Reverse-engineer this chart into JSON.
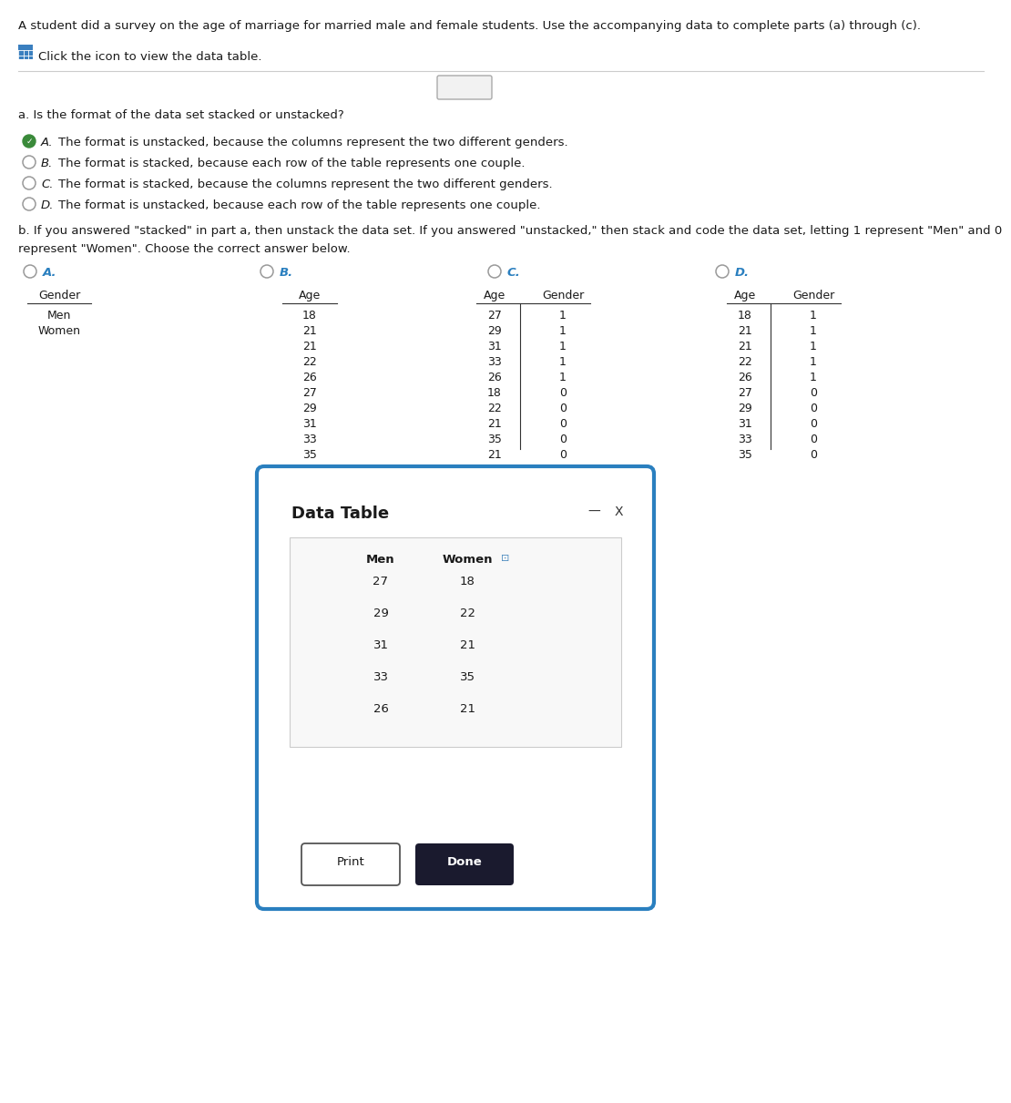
{
  "title": "A student did a survey on the age of marriage for married male and female students. Use the accompanying data to complete parts (a) through (c).",
  "click_text": "Click the icon to view the data table.",
  "part_a_label": "a. Is the format of the data set stacked or unstacked?",
  "part_a_options": [
    {
      "key": "A",
      "text": "The format is unstacked, because the columns represent the two different genders.",
      "selected": true,
      "checkmark": true
    },
    {
      "key": "B",
      "text": "The format is stacked, because each row of the table represents one couple.",
      "selected": false,
      "checkmark": false
    },
    {
      "key": "C",
      "text": "The format is stacked, because the columns represent the two different genders.",
      "selected": false,
      "checkmark": false
    },
    {
      "key": "D",
      "text": "The format is unstacked, because each row of the table represents one couple.",
      "selected": false,
      "checkmark": false
    }
  ],
  "part_b_line1": "b. If you answered \"stacked\" in part a, then unstack the data set. If you answered \"unstacked,\" then stack and code the data set, letting 1 represent \"Men\" and 0",
  "part_b_line2": "represent \"Women\". Choose the correct answer below.",
  "part_b_options": [
    "A",
    "B",
    "C",
    "D"
  ],
  "table_A_rows": [
    [
      "Men"
    ],
    [
      "Women"
    ]
  ],
  "table_B_rows": [
    [
      "18"
    ],
    [
      "21"
    ],
    [
      "21"
    ],
    [
      "22"
    ],
    [
      "26"
    ],
    [
      "27"
    ],
    [
      "29"
    ],
    [
      "31"
    ],
    [
      "33"
    ],
    [
      "35"
    ]
  ],
  "table_C_rows": [
    [
      "27",
      "1"
    ],
    [
      "29",
      "1"
    ],
    [
      "31",
      "1"
    ],
    [
      "33",
      "1"
    ],
    [
      "26",
      "1"
    ],
    [
      "18",
      "0"
    ],
    [
      "22",
      "0"
    ],
    [
      "21",
      "0"
    ],
    [
      "35",
      "0"
    ],
    [
      "21",
      "0"
    ]
  ],
  "table_D_rows": [
    [
      "18",
      "1"
    ],
    [
      "21",
      "1"
    ],
    [
      "21",
      "1"
    ],
    [
      "22",
      "1"
    ],
    [
      "26",
      "1"
    ],
    [
      "27",
      "0"
    ],
    [
      "29",
      "0"
    ],
    [
      "31",
      "0"
    ],
    [
      "33",
      "0"
    ],
    [
      "35",
      "0"
    ]
  ],
  "data_table_title": "Data Table",
  "data_table_rows": [
    [
      "27",
      "18"
    ],
    [
      "29",
      "22"
    ],
    [
      "31",
      "21"
    ],
    [
      "33",
      "35"
    ],
    [
      "26",
      "21"
    ]
  ],
  "bg_color": "#ffffff",
  "text_color": "#1a1a1a",
  "dialog_border_color": "#2a7fbf",
  "done_btn_color": "#1a1a2e"
}
